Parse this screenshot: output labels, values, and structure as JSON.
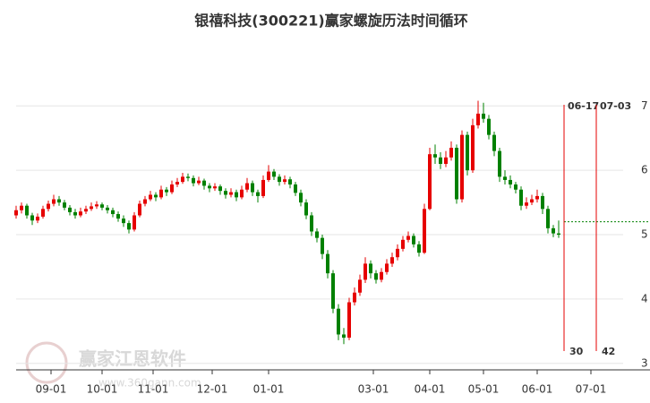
{
  "chart_data": {
    "type": "candlestick",
    "title": "银禧科技(300221)赢家螺旋历法时间循环",
    "watermark": "赢家江恩软件",
    "watermark_url": "www.360gann.com",
    "up_color": "#e60000",
    "down_color": "#008000",
    "xlim": [
      0,
      226
    ],
    "ylim": [
      2.9,
      7.95
    ],
    "yticks": [
      3,
      4,
      5,
      6,
      7
    ],
    "xticks": [
      {
        "value": 13,
        "label": "09-01"
      },
      {
        "value": 32,
        "label": "10-01"
      },
      {
        "value": 51,
        "label": "11-01"
      },
      {
        "value": 73,
        "label": "12-01"
      },
      {
        "value": 94,
        "label": "01-01"
      },
      {
        "value": 133,
        "label": "03-01"
      },
      {
        "value": 154,
        "label": "04-01"
      },
      {
        "value": 174,
        "label": "05-01"
      },
      {
        "value": 194,
        "label": "06-01"
      },
      {
        "value": 214,
        "label": "07-01"
      }
    ],
    "grid": true,
    "cycle_lines": [
      {
        "x": 204,
        "label": "06-17",
        "count": 30
      },
      {
        "x": 216,
        "label": "07-03",
        "count": 42
      }
    ],
    "cycle_color": "#e60000",
    "hline": {
      "value": 5.2,
      "color": "#008000"
    },
    "x": [
      0,
      2,
      4,
      6,
      8,
      10,
      12,
      14,
      16,
      18,
      20,
      22,
      24,
      26,
      28,
      30,
      32,
      34,
      36,
      38,
      40,
      42,
      44,
      46,
      48,
      50,
      52,
      54,
      56,
      58,
      60,
      62,
      64,
      66,
      68,
      70,
      72,
      74,
      76,
      78,
      80,
      82,
      84,
      86,
      88,
      90,
      92,
      94,
      96,
      98,
      100,
      102,
      104,
      106,
      108,
      110,
      112,
      114,
      116,
      118,
      120,
      122,
      124,
      126,
      128,
      130,
      132,
      134,
      136,
      138,
      140,
      142,
      144,
      146,
      148,
      150,
      152,
      154,
      156,
      158,
      160,
      162,
      164,
      166,
      168,
      170,
      172,
      174,
      176,
      178,
      180,
      182,
      184,
      186,
      188,
      190,
      192,
      194,
      196,
      198,
      200,
      202
    ],
    "ohlc": [
      [
        5.3,
        5.45,
        5.25,
        5.38
      ],
      [
        5.38,
        5.5,
        5.33,
        5.45
      ],
      [
        5.45,
        5.48,
        5.25,
        5.3
      ],
      [
        5.3,
        5.34,
        5.15,
        5.22
      ],
      [
        5.22,
        5.33,
        5.18,
        5.28
      ],
      [
        5.28,
        5.45,
        5.25,
        5.4
      ],
      [
        5.4,
        5.53,
        5.36,
        5.48
      ],
      [
        5.48,
        5.62,
        5.44,
        5.55
      ],
      [
        5.55,
        5.6,
        5.45,
        5.5
      ],
      [
        5.5,
        5.54,
        5.38,
        5.42
      ],
      [
        5.42,
        5.46,
        5.3,
        5.35
      ],
      [
        5.35,
        5.4,
        5.25,
        5.3
      ],
      [
        5.3,
        5.42,
        5.27,
        5.36
      ],
      [
        5.36,
        5.45,
        5.32,
        5.4
      ],
      [
        5.4,
        5.5,
        5.37,
        5.44
      ],
      [
        5.44,
        5.52,
        5.4,
        5.47
      ],
      [
        5.47,
        5.5,
        5.38,
        5.42
      ],
      [
        5.42,
        5.46,
        5.33,
        5.38
      ],
      [
        5.38,
        5.42,
        5.27,
        5.32
      ],
      [
        5.32,
        5.36,
        5.2,
        5.25
      ],
      [
        5.25,
        5.3,
        5.12,
        5.18
      ],
      [
        5.18,
        5.22,
        5.02,
        5.08
      ],
      [
        5.08,
        5.35,
        5.05,
        5.3
      ],
      [
        5.3,
        5.53,
        5.27,
        5.48
      ],
      [
        5.48,
        5.6,
        5.44,
        5.55
      ],
      [
        5.55,
        5.68,
        5.52,
        5.62
      ],
      [
        5.62,
        5.66,
        5.52,
        5.58
      ],
      [
        5.58,
        5.76,
        5.55,
        5.7
      ],
      [
        5.7,
        5.74,
        5.6,
        5.66
      ],
      [
        5.66,
        5.84,
        5.63,
        5.78
      ],
      [
        5.78,
        5.88,
        5.74,
        5.82
      ],
      [
        5.82,
        5.96,
        5.79,
        5.9
      ],
      [
        5.9,
        5.95,
        5.83,
        5.88
      ],
      [
        5.88,
        5.92,
        5.75,
        5.8
      ],
      [
        5.8,
        5.9,
        5.77,
        5.84
      ],
      [
        5.84,
        5.87,
        5.7,
        5.76
      ],
      [
        5.76,
        5.8,
        5.66,
        5.72
      ],
      [
        5.72,
        5.8,
        5.68,
        5.75
      ],
      [
        5.75,
        5.78,
        5.62,
        5.68
      ],
      [
        5.68,
        5.72,
        5.56,
        5.62
      ],
      [
        5.62,
        5.72,
        5.58,
        5.66
      ],
      [
        5.66,
        5.7,
        5.52,
        5.58
      ],
      [
        5.58,
        5.76,
        5.55,
        5.7
      ],
      [
        5.7,
        5.88,
        5.66,
        5.8
      ],
      [
        5.8,
        5.84,
        5.6,
        5.66
      ],
      [
        5.66,
        5.7,
        5.5,
        5.6
      ],
      [
        5.6,
        5.92,
        5.57,
        5.85
      ],
      [
        5.85,
        6.08,
        5.82,
        5.98
      ],
      [
        5.98,
        6.02,
        5.85,
        5.9
      ],
      [
        5.9,
        5.94,
        5.76,
        5.82
      ],
      [
        5.82,
        5.92,
        5.78,
        5.86
      ],
      [
        5.86,
        5.9,
        5.72,
        5.78
      ],
      [
        5.78,
        5.82,
        5.6,
        5.65
      ],
      [
        5.65,
        5.7,
        5.44,
        5.5
      ],
      [
        5.5,
        5.55,
        5.24,
        5.3
      ],
      [
        5.3,
        5.35,
        4.98,
        5.05
      ],
      [
        5.05,
        5.1,
        4.88,
        4.95
      ],
      [
        4.95,
        5.0,
        4.62,
        4.7
      ],
      [
        4.7,
        4.76,
        4.32,
        4.4
      ],
      [
        4.4,
        4.45,
        3.78,
        3.85
      ],
      [
        3.85,
        3.92,
        3.36,
        3.45
      ],
      [
        3.45,
        3.55,
        3.3,
        3.4
      ],
      [
        3.4,
        4.02,
        3.36,
        3.95
      ],
      [
        3.95,
        4.18,
        3.9,
        4.1
      ],
      [
        4.1,
        4.38,
        4.05,
        4.3
      ],
      [
        4.3,
        4.65,
        4.25,
        4.55
      ],
      [
        4.55,
        4.6,
        4.32,
        4.4
      ],
      [
        4.4,
        4.45,
        4.24,
        4.3
      ],
      [
        4.3,
        4.48,
        4.26,
        4.42
      ],
      [
        4.42,
        4.62,
        4.38,
        4.55
      ],
      [
        4.55,
        4.72,
        4.5,
        4.65
      ],
      [
        4.65,
        4.85,
        4.6,
        4.78
      ],
      [
        4.78,
        4.98,
        4.74,
        4.92
      ],
      [
        4.92,
        5.05,
        4.88,
        4.98
      ],
      [
        4.98,
        5.02,
        4.8,
        4.85
      ],
      [
        4.85,
        4.9,
        4.66,
        4.72
      ],
      [
        4.72,
        5.48,
        4.7,
        5.4
      ],
      [
        5.4,
        6.35,
        5.38,
        6.25
      ],
      [
        6.25,
        6.4,
        6.1,
        6.2
      ],
      [
        6.2,
        6.28,
        6.02,
        6.1
      ],
      [
        6.1,
        6.3,
        6.05,
        6.2
      ],
      [
        6.2,
        6.45,
        6.15,
        6.35
      ],
      [
        6.35,
        6.4,
        5.48,
        5.55
      ],
      [
        5.55,
        6.62,
        5.5,
        6.55
      ],
      [
        6.55,
        6.6,
        5.92,
        6.0
      ],
      [
        6.0,
        6.8,
        5.96,
        6.7
      ],
      [
        6.7,
        7.08,
        6.65,
        6.88
      ],
      [
        6.88,
        7.05,
        6.74,
        6.8
      ],
      [
        6.8,
        6.86,
        6.48,
        6.55
      ],
      [
        6.55,
        6.6,
        6.22,
        6.3
      ],
      [
        6.3,
        6.35,
        5.82,
        5.9
      ],
      [
        5.9,
        6.0,
        5.78,
        5.85
      ],
      [
        5.85,
        5.92,
        5.72,
        5.78
      ],
      [
        5.78,
        5.82,
        5.64,
        5.7
      ],
      [
        5.7,
        5.75,
        5.38,
        5.45
      ],
      [
        5.45,
        5.58,
        5.4,
        5.5
      ],
      [
        5.5,
        5.62,
        5.46,
        5.55
      ],
      [
        5.55,
        5.7,
        5.5,
        5.6
      ],
      [
        5.6,
        5.65,
        5.32,
        5.4
      ],
      [
        5.4,
        5.45,
        5.02,
        5.1
      ],
      [
        5.1,
        5.15,
        4.96,
        5.02
      ],
      [
        5.02,
        5.22,
        4.95,
        5.0
      ]
    ]
  }
}
